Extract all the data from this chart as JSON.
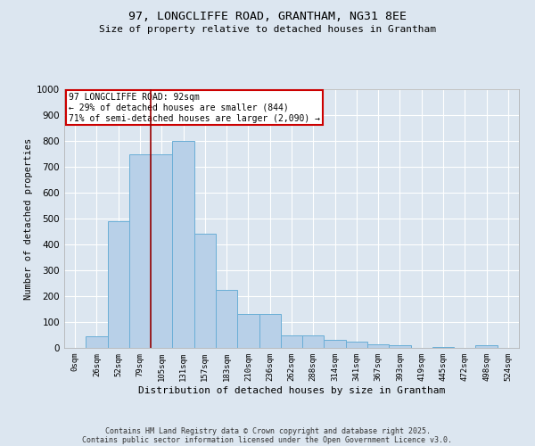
{
  "title": "97, LONGCLIFFE ROAD, GRANTHAM, NG31 8EE",
  "subtitle": "Size of property relative to detached houses in Grantham",
  "xlabel": "Distribution of detached houses by size in Grantham",
  "ylabel": "Number of detached properties",
  "bin_labels": [
    "0sqm",
    "26sqm",
    "52sqm",
    "79sqm",
    "105sqm",
    "131sqm",
    "157sqm",
    "183sqm",
    "210sqm",
    "236sqm",
    "262sqm",
    "288sqm",
    "314sqm",
    "341sqm",
    "367sqm",
    "393sqm",
    "419sqm",
    "445sqm",
    "472sqm",
    "498sqm",
    "524sqm"
  ],
  "bar_values": [
    0,
    45,
    490,
    750,
    750,
    800,
    440,
    225,
    130,
    130,
    50,
    50,
    30,
    25,
    15,
    10,
    0,
    5,
    0,
    10,
    0
  ],
  "bar_color": "#b8d0e8",
  "bar_edge_color": "#6aaed6",
  "background_color": "#dce6f0",
  "grid_color": "#ffffff",
  "property_line_x": 3.5,
  "property_line_color": "#990000",
  "annotation_text": "97 LONGCLIFFE ROAD: 92sqm\n← 29% of detached houses are smaller (844)\n71% of semi-detached houses are larger (2,090) →",
  "annotation_box_color": "#ffffff",
  "annotation_box_edge_color": "#cc0000",
  "ylim": [
    0,
    1000
  ],
  "yticks": [
    0,
    100,
    200,
    300,
    400,
    500,
    600,
    700,
    800,
    900,
    1000
  ],
  "footer_line1": "Contains HM Land Registry data © Crown copyright and database right 2025.",
  "footer_line2": "Contains public sector information licensed under the Open Government Licence v3.0."
}
